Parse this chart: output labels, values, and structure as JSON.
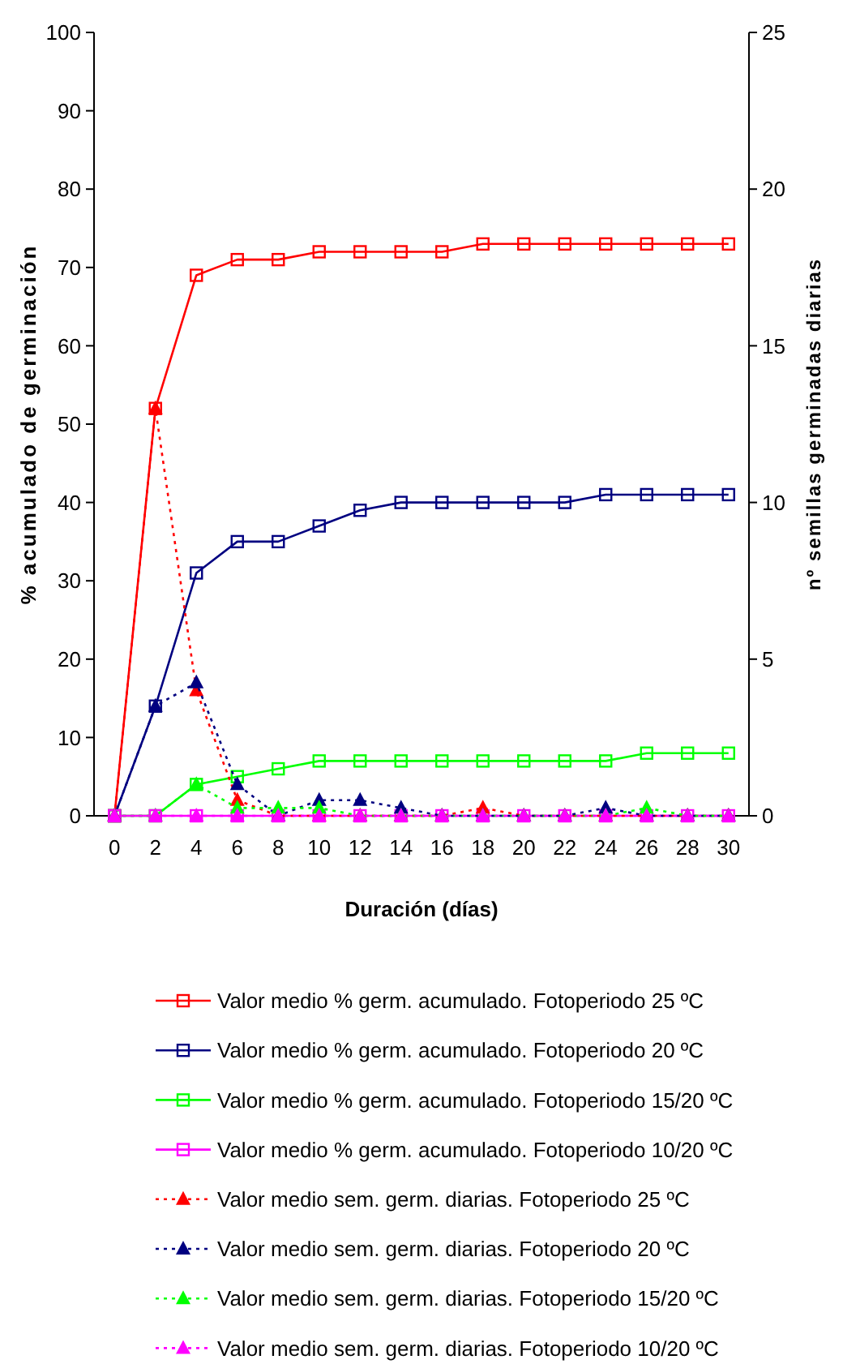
{
  "chart_data": {
    "type": "line",
    "xlabel": "Duración (días)",
    "ylabel": "% acumulado de germinación",
    "y2label": "nº semillas germinadas diarias",
    "x": [
      0,
      2,
      4,
      6,
      8,
      10,
      12,
      14,
      16,
      18,
      20,
      22,
      24,
      26,
      28,
      30
    ],
    "xlim": [
      -1,
      31
    ],
    "xticks": [
      0,
      2,
      4,
      6,
      8,
      10,
      12,
      14,
      16,
      18,
      20,
      22,
      24,
      26,
      28,
      30
    ],
    "ylim": [
      0,
      100
    ],
    "yticks": [
      0,
      10,
      20,
      30,
      40,
      50,
      60,
      70,
      80,
      90,
      100
    ],
    "y2lim": [
      0,
      25
    ],
    "y2ticks": [
      0,
      5,
      10,
      15,
      20,
      25
    ],
    "grid": false,
    "legend": "bottom",
    "series": [
      {
        "name": "Valor medio % germ. acumulado. Fotoperiodo 25 ºC",
        "color": "#ff0000",
        "marker": "square",
        "line_style": "solid",
        "values": [
          0,
          52,
          69,
          71,
          71,
          72,
          72,
          72,
          72,
          73,
          73,
          73,
          73,
          73,
          73,
          73
        ]
      },
      {
        "name": "Valor medio % germ. acumulado. Fotoperiodo 20 ºC",
        "color": "#000080",
        "marker": "square",
        "line_style": "solid",
        "values": [
          0,
          14,
          31,
          35,
          35,
          37,
          39,
          40,
          40,
          40,
          40,
          40,
          41,
          41,
          41,
          41
        ]
      },
      {
        "name": "Valor medio % germ. acumulado. Fotoperiodo 15/20 ºC",
        "color": "#00ff00",
        "marker": "square",
        "line_style": "solid",
        "values": [
          0,
          0,
          4,
          5,
          6,
          7,
          7,
          7,
          7,
          7,
          7,
          7,
          7,
          8,
          8,
          8
        ]
      },
      {
        "name": "Valor medio % germ. acumulado. Fotoperiodo 10/20 ºC",
        "color": "#ff00ff",
        "marker": "square",
        "line_style": "solid",
        "values": [
          0,
          0,
          0,
          0,
          0,
          0,
          0,
          0,
          0,
          0,
          0,
          0,
          0,
          0,
          0,
          0
        ]
      },
      {
        "name": "Valor medio sem. germ. diarias. Fotoperiodo 25 ºC",
        "color": "#ff0000",
        "marker": "triangle",
        "line_style": "dotted",
        "axis": "y2",
        "values": [
          0,
          13,
          4,
          0.5,
          0,
          0,
          0,
          0,
          0,
          0.25,
          0,
          0,
          0,
          0,
          0,
          0
        ]
      },
      {
        "name": "Valor medio sem. germ. diarias. Fotoperiodo 20 ºC",
        "color": "#000080",
        "marker": "triangle",
        "line_style": "dotted",
        "axis": "y2",
        "values": [
          0,
          3.5,
          4.25,
          1,
          0,
          0.5,
          0.5,
          0.25,
          0,
          0,
          0,
          0,
          0.25,
          0,
          0,
          0
        ]
      },
      {
        "name": "Valor medio sem. germ. diarias. Fotoperiodo 15/20 ºC",
        "color": "#00ff00",
        "marker": "triangle",
        "line_style": "dotted",
        "axis": "y2",
        "values": [
          0,
          0,
          1,
          0.25,
          0.25,
          0.25,
          0,
          0,
          0,
          0,
          0,
          0,
          0,
          0.25,
          0,
          0
        ]
      },
      {
        "name": "Valor medio sem. germ. diarias. Fotoperiodo 10/20 ºC",
        "color": "#ff00ff",
        "marker": "triangle",
        "line_style": "dotted",
        "axis": "y2",
        "values": [
          0,
          0,
          0,
          0,
          0,
          0,
          0,
          0,
          0,
          0,
          0,
          0,
          0,
          0,
          0,
          0
        ]
      }
    ]
  }
}
